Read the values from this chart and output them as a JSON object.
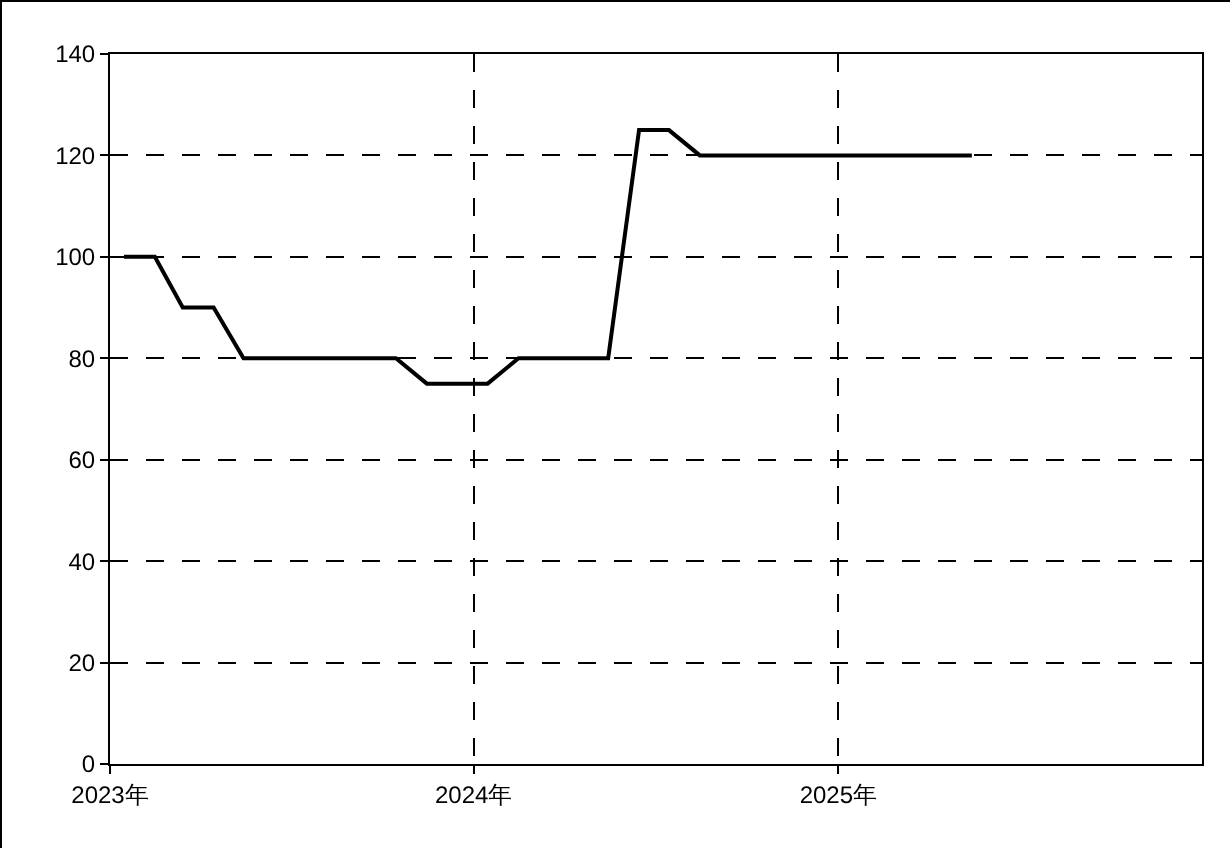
{
  "chart_data": {
    "type": "line",
    "x": [
      "2023-01-15",
      "2023-02-15",
      "2023-03-15",
      "2023-04-15",
      "2023-05-15",
      "2023-06-15",
      "2023-07-15",
      "2023-08-15",
      "2023-09-15",
      "2023-10-15",
      "2023-11-15",
      "2023-12-15",
      "2024-01-15",
      "2024-02-15",
      "2024-03-15",
      "2024-04-15",
      "2024-05-15",
      "2024-06-15",
      "2024-07-15",
      "2024-08-15",
      "2024-09-15",
      "2024-10-15",
      "2024-11-15",
      "2024-12-15",
      "2025-01-15",
      "2025-02-15",
      "2025-03-15",
      "2025-04-15",
      "2025-05-15"
    ],
    "series": [
      {
        "color": "#000000",
        "values": [
          100,
          100,
          90,
          90,
          80,
          80,
          80,
          80,
          80,
          80,
          75,
          75,
          75,
          80,
          80,
          80,
          80,
          125,
          125,
          120,
          120,
          120,
          120,
          120,
          120,
          120,
          120,
          120,
          120
        ]
      }
    ],
    "xlim": [
      "2023-01-01",
      "2026-01-01"
    ],
    "xticks": [
      {
        "value": "2023-01-01",
        "label": "2023年"
      },
      {
        "value": "2024-01-01",
        "label": "2024年"
      },
      {
        "value": "2025-01-01",
        "label": "2025年"
      }
    ],
    "ylim": [
      0,
      140
    ],
    "yticks": [
      0,
      20,
      40,
      60,
      80,
      100,
      120,
      140
    ],
    "grid": true,
    "line_style": "solid"
  }
}
